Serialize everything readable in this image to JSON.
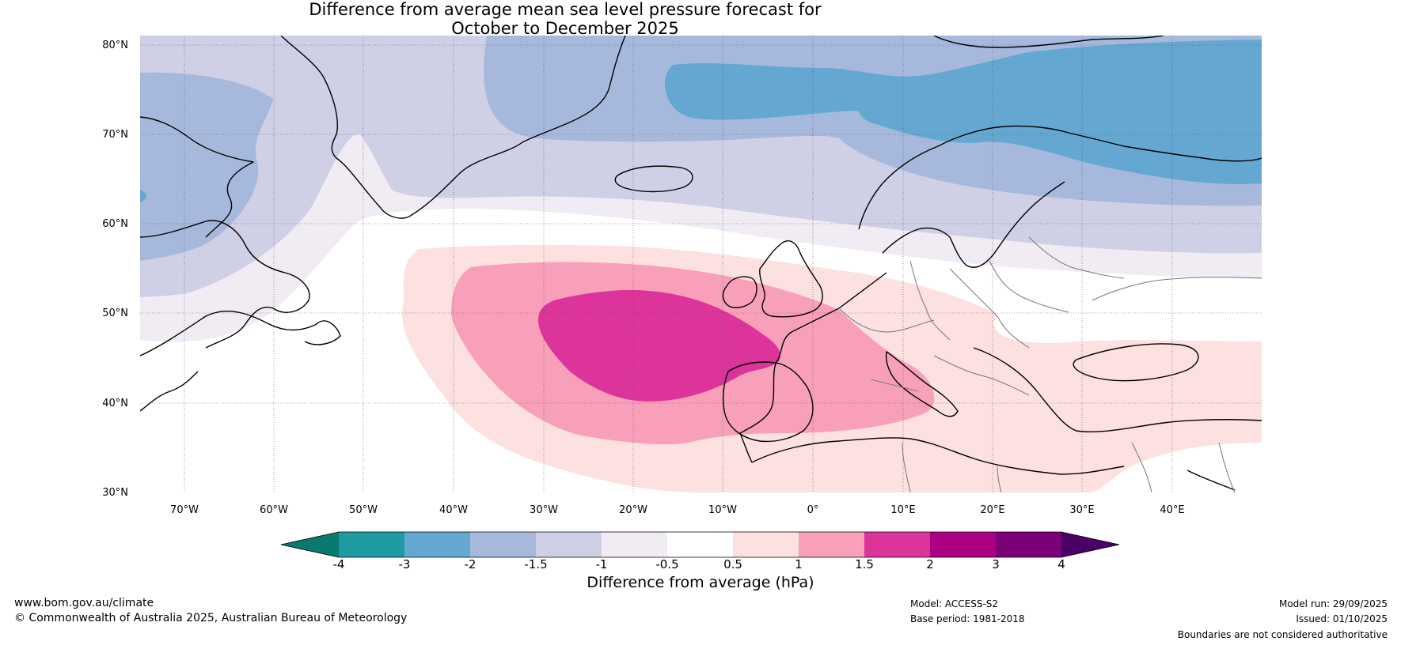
{
  "title": {
    "line1": "Difference from average mean sea level pressure forecast for",
    "line2": "October to December 2025"
  },
  "map": {
    "lat_labels": [
      "80°N",
      "70°N",
      "60°N",
      "50°N",
      "40°N",
      "30°N"
    ],
    "lat_values": [
      80,
      70,
      60,
      50,
      40,
      30
    ],
    "lon_labels": [
      "70°W",
      "60°W",
      "50°W",
      "40°W",
      "30°W",
      "20°W",
      "10°W",
      "0°",
      "10°E",
      "20°E",
      "30°E",
      "40°E"
    ],
    "lon_values": [
      -70,
      -60,
      -50,
      -40,
      -30,
      -20,
      -10,
      0,
      10,
      20,
      30,
      40
    ],
    "extent": {
      "lon_min": -75,
      "lon_max": 50,
      "lat_min": 30,
      "lat_max": 81
    }
  },
  "colorbar": {
    "label": "Difference from average (hPa)",
    "ticks": [
      "-4",
      "-3",
      "-2",
      "-1.5",
      "-1",
      "-0.5",
      "0.5",
      "1",
      "1.5",
      "2",
      "3",
      "4"
    ],
    "colors": {
      "lt_m4": "#0a7a6e",
      "m4_m3": "#1e9aa0",
      "m3_m2": "#64a8d1",
      "m2_m15": "#a6b9dc",
      "m15_m1": "#cfd0e5",
      "m1_m05": "#f1ecf4",
      "m05_05": "#ffffff",
      "p05_1": "#fde0e0",
      "p1_15": "#f8a0ba",
      "p15_2": "#dc349b",
      "p2_3": "#ad0082",
      "p3_4": "#7c0078",
      "gt_4": "#4b0066"
    }
  },
  "footer": {
    "url": "www.bom.gov.au/climate",
    "copyright": "© Commonwealth of Australia 2025, Australian Bureau of Meteorology",
    "model": "Model: ACCESS-S2",
    "base_period": "Base period: 1981-2018",
    "model_run": "Model run: 29/09/2025",
    "issued": "Issued: 01/10/2025",
    "disclaimer": "Boundaries are not considered authoritative"
  }
}
